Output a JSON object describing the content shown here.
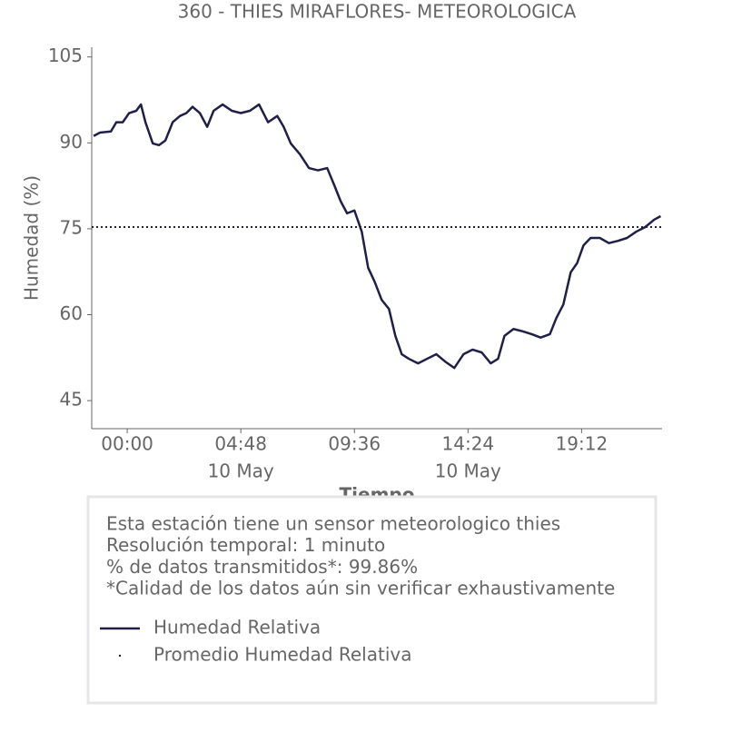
{
  "chart_data": {
    "type": "line",
    "title": "360 - THIES MIRAFLORES- METEOROLOGICA",
    "xlabel": "Tiempo",
    "ylabel": "Humedad (%)",
    "x": [
      -1.42,
      -1.15,
      -0.69,
      -0.46,
      -0.19,
      0.08,
      0.38,
      0.58,
      0.77,
      1.08,
      1.34,
      1.61,
      1.92,
      2.23,
      2.5,
      2.76,
      3.07,
      3.38,
      3.65,
      4.03,
      4.42,
      4.8,
      5.18,
      5.57,
      5.95,
      6.34,
      6.61,
      6.91,
      7.3,
      7.68,
      8.06,
      8.45,
      8.76,
      9.02,
      9.29,
      9.6,
      9.91,
      10.18,
      10.45,
      10.75,
      11.06,
      11.33,
      11.6,
      11.9,
      12.29,
      12.67,
      13.06,
      13.44,
      13.82,
      14.21,
      14.59,
      14.98,
      15.36,
      15.67,
      15.94,
      16.32,
      16.71,
      17.09,
      17.47,
      17.86,
      18.13,
      18.43,
      18.74,
      19.01,
      19.28,
      19.58,
      19.97,
      20.35,
      20.74,
      21.12,
      21.51,
      21.89,
      22.27,
      22.54
    ],
    "series": [
      {
        "name": "Humedad Relativa",
        "color": "#1f1f48",
        "values": [
          91.2,
          91.8,
          92,
          93.6,
          93.6,
          95.2,
          95.6,
          96.7,
          93.6,
          89.9,
          89.6,
          90.4,
          93.6,
          94.7,
          95.2,
          96.3,
          95.2,
          92.8,
          95.6,
          96.7,
          95.6,
          95.2,
          95.6,
          96.7,
          93.6,
          94.7,
          92.8,
          89.9,
          88,
          85.6,
          85.2,
          85.6,
          82.5,
          79.8,
          77.7,
          78.2,
          74.5,
          68.2,
          65.8,
          62.6,
          61,
          56.3,
          53.1,
          52.3,
          51.5,
          52.3,
          53.1,
          51.8,
          50.7,
          53.1,
          53.9,
          53.4,
          51.5,
          52.3,
          56.3,
          57.5,
          57.1,
          56.6,
          56,
          56.6,
          59.4,
          61.8,
          67.4,
          69,
          72.1,
          73.4,
          73.4,
          72.5,
          72.9,
          73.4,
          74.5,
          75.3,
          76.6,
          77.2
        ]
      }
    ],
    "mean_line": {
      "name": "Promedio Humedad Relativa",
      "value": 75.3,
      "color": "#1f1f48"
    },
    "xlim": [
      -1.5,
      22.6
    ],
    "ylim": [
      40.1,
      106.7
    ],
    "xticks": [
      {
        "value": 0,
        "label": "00:00"
      },
      {
        "value": 4.8,
        "label": "04:48"
      },
      {
        "value": 9.6,
        "label": "09:36"
      },
      {
        "value": 14.4,
        "label": "14:24"
      },
      {
        "value": 19.2,
        "label": "19:12"
      }
    ],
    "xtick_sublabels": [
      {
        "value": 4.8,
        "label": "10 May"
      },
      {
        "value": 14.4,
        "label": "10 May"
      }
    ],
    "yticks": [
      45,
      60,
      75,
      90,
      105
    ],
    "notes": [
      "Esta estación tiene un sensor meteorologico thies",
      "Resolución temporal: 1 minuto",
      "% de datos transmitidos*: 99.86%",
      "*Calidad de los datos aún sin verificar exhaustivamente"
    ]
  }
}
